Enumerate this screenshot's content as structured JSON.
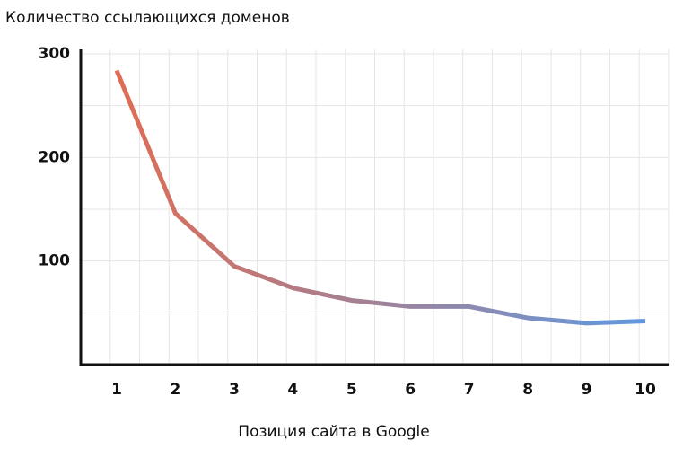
{
  "chart_data": {
    "type": "line",
    "title": "Количество ссылающихся доменов",
    "x_label": "Позиция сайта в Google",
    "categories": [
      "1",
      "2",
      "3",
      "4",
      "5",
      "6",
      "7",
      "8",
      "9",
      "10"
    ],
    "values": [
      284,
      146,
      95,
      74,
      62,
      56,
      56,
      45,
      40,
      42
    ],
    "colors": [
      "#e8694a",
      "#5a9be6"
    ],
    "ylim": [
      0,
      300
    ],
    "yticks": [
      100,
      200,
      300
    ],
    "grid": true
  }
}
